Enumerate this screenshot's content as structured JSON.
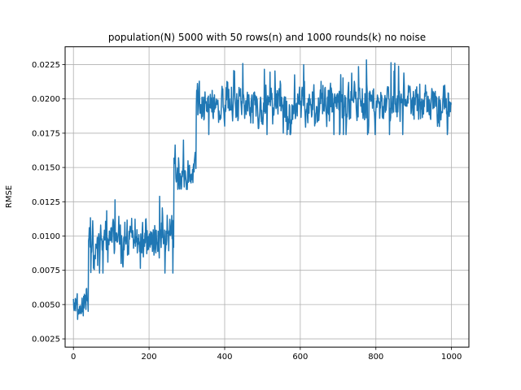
{
  "chart_data": {
    "type": "line",
    "title": "population(N) 5000 with 50 rows(n) and 1000 rounds(k) no noise",
    "xlabel": "",
    "ylabel": "RMSE",
    "xlim": [
      -22,
      1046
    ],
    "ylim": [
      0.0019,
      0.0238
    ],
    "xticks": [
      0,
      200,
      400,
      600,
      800,
      1000
    ],
    "xtick_labels": [
      "0",
      "200",
      "400",
      "600",
      "800",
      "1000"
    ],
    "yticks": [
      0.0025,
      0.005,
      0.0075,
      0.01,
      0.0125,
      0.015,
      0.0175,
      0.02,
      0.0225
    ],
    "ytick_labels": [
      "0.0025",
      "0.0050",
      "0.0075",
      "0.0100",
      "0.0125",
      "0.0150",
      "0.0175",
      "0.0200",
      "0.0225"
    ],
    "grid": true,
    "color": "#1f77b4",
    "series": [
      {
        "segments": [
          {
            "x_start": 0,
            "x_end": 39,
            "mean": 0.0049,
            "amplitude": 0.0006,
            "min": 0.0029,
            "max": 0.0062
          },
          {
            "x_start": 40,
            "x_end": 265,
            "mean": 0.0097,
            "amplitude": 0.001,
            "min": 0.0073,
            "max": 0.013
          },
          {
            "x_start": 266,
            "x_end": 324,
            "mean": 0.0148,
            "amplitude": 0.0008,
            "min": 0.0134,
            "max": 0.0174
          },
          {
            "x_start": 325,
            "x_end": 1000,
            "mean": 0.0197,
            "amplitude": 0.0009,
            "min": 0.0174,
            "max": 0.0229
          }
        ]
      }
    ]
  }
}
